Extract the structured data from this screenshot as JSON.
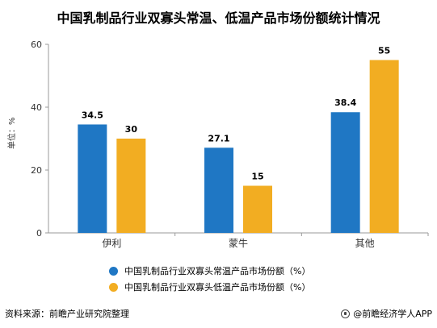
{
  "chart_data": {
    "type": "bar",
    "title": "中国乳制品行业双寡头常温、低温产品市场份额统计情况",
    "ylabel": "单位：%",
    "xlabel": "",
    "categories": [
      "伊利",
      "蒙牛",
      "其他"
    ],
    "ylim": [
      0,
      60
    ],
    "yticks": [
      0,
      20,
      40,
      60
    ],
    "series": [
      {
        "name": "中国乳制品行业双寡头常温产品市场份额（%）",
        "values": [
          34.5,
          27.1,
          38.4
        ],
        "color": "#1f77c4",
        "labels": [
          "34.5",
          "27.1",
          "38.4"
        ]
      },
      {
        "name": "中国乳制品行业双寡头低温产品市场份额（%）",
        "values": [
          30,
          15,
          55
        ],
        "color": "#f2ad22",
        "labels": [
          "30",
          "15",
          "55"
        ]
      }
    ],
    "grid": false,
    "legend_position": "bottom"
  },
  "footer": {
    "source": "资料来源：前瞻产业研究院整理",
    "brand": "@前瞻经济学人APP"
  }
}
